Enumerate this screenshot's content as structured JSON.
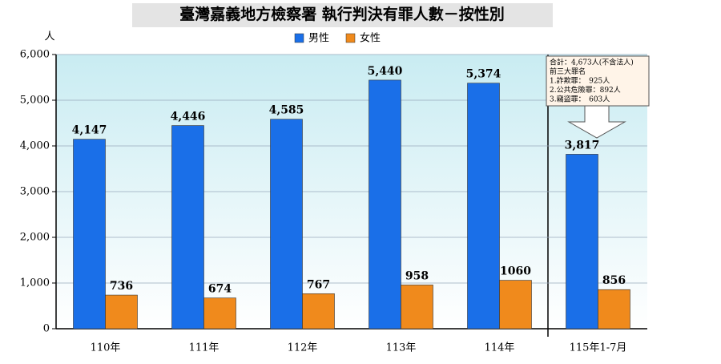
{
  "chart_data": {
    "type": "bar",
    "title": "臺灣嘉義地方檢察署 執行判決有罪人數－按性別",
    "y_label": "人",
    "categories": [
      "110年",
      "111年",
      "112年",
      "113年",
      "114年",
      "115年1-7月"
    ],
    "series": [
      {
        "name": "男性",
        "color": "#1a6fe8",
        "values": [
          4147,
          4446,
          4585,
          5440,
          5374,
          3817
        ],
        "value_labels": [
          "4,147",
          "4,446",
          "4,585",
          "5,440",
          "5,374",
          "3,817"
        ]
      },
      {
        "name": "女性",
        "color": "#f08a1c",
        "values": [
          736,
          674,
          767,
          958,
          1060,
          856
        ]
      }
    ],
    "ylim": [
      0,
      6000
    ],
    "yticks": [
      0,
      {
        "value": 1000,
        "label": "1,000"
      },
      {
        "value": 2000,
        "label": "2,000"
      },
      {
        "value": 3000,
        "label": "3,000"
      },
      {
        "value": 4000,
        "label": "4,000"
      },
      {
        "value": 5000,
        "label": "5,000"
      },
      {
        "value": 6000,
        "label": "6,000"
      }
    ],
    "grid": true,
    "annotation": [
      "合計：4,673人(不含法人)",
      "前三大罪名",
      "1.詐欺罪：　925人",
      "2.公共危險罪：892人",
      "3.竊盜罪：　603人"
    ]
  }
}
